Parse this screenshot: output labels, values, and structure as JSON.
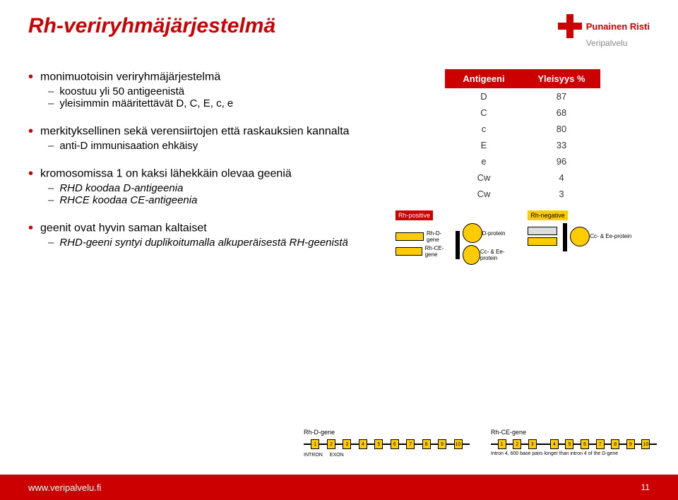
{
  "title": "Rh-veriryhmäjärjestelmä",
  "logo": {
    "line1": "Punainen Risti",
    "line2": "Veripalvelu"
  },
  "bullets": {
    "b1": "monimuotoisin veriryhmäjärjestelmä",
    "b1s1": "koostuu yli 50 antigeenistä",
    "b1s2": "yleisimmin määritettävät D, C, E, c, e",
    "b2": "merkityksellinen sekä verensiirtojen että raskauksien kannalta",
    "b2s1": "anti-D immunisaation ehkäisy",
    "b3": "kromosomissa 1 on kaksi lähekkäin olevaa geeniä",
    "b3s1": "RHD koodaa D-antigeenia",
    "b3s2": "RHCE koodaa CE-antigeenia",
    "b4": "geenit ovat hyvin saman kaltaiset",
    "b4s1": "RHD-geeni syntyi duplikoitumalla alkuperäisestä RH-geenistä"
  },
  "table": {
    "h1": "Antigeeni",
    "h2": "Yleisyys %",
    "rows": [
      {
        "a": "D",
        "p": "87"
      },
      {
        "a": "C",
        "p": "68"
      },
      {
        "a": "c",
        "p": "80"
      },
      {
        "a": "E",
        "p": "33"
      },
      {
        "a": "e",
        "p": "96"
      },
      {
        "a": "Cw",
        "p": "4"
      },
      {
        "a": "Cw",
        "p": "3"
      }
    ],
    "colors": {
      "header_bg": "#cc0000",
      "header_fg": "#ffffff"
    }
  },
  "diagram1": {
    "left_label": "Rh-positive",
    "right_label": "Rh-negative",
    "rows": {
      "rhd_gene": "Rh-D-gene",
      "rhce_gene": "Rh-CE-gene",
      "d_protein": "D-protein",
      "cce_protein": "Cc- & Ee-protein"
    }
  },
  "diagram2": {
    "left_label": "Rh-D-gene",
    "right_label": "Rh-CE-gene",
    "exons": [
      "1",
      "2",
      "3",
      "4",
      "5",
      "6",
      "7",
      "8",
      "9",
      "10"
    ],
    "intron": "INTRON",
    "exon": "EXON",
    "note": "Intron 4, 600 base pairs longer than intron 4 of the D-gene"
  },
  "footer": {
    "url": "www.veripalvelu.fi",
    "page": "11"
  },
  "colors": {
    "accent": "#cc0000",
    "yellow": "#ffcc00",
    "text": "#222222",
    "bg": "#ffffff"
  }
}
